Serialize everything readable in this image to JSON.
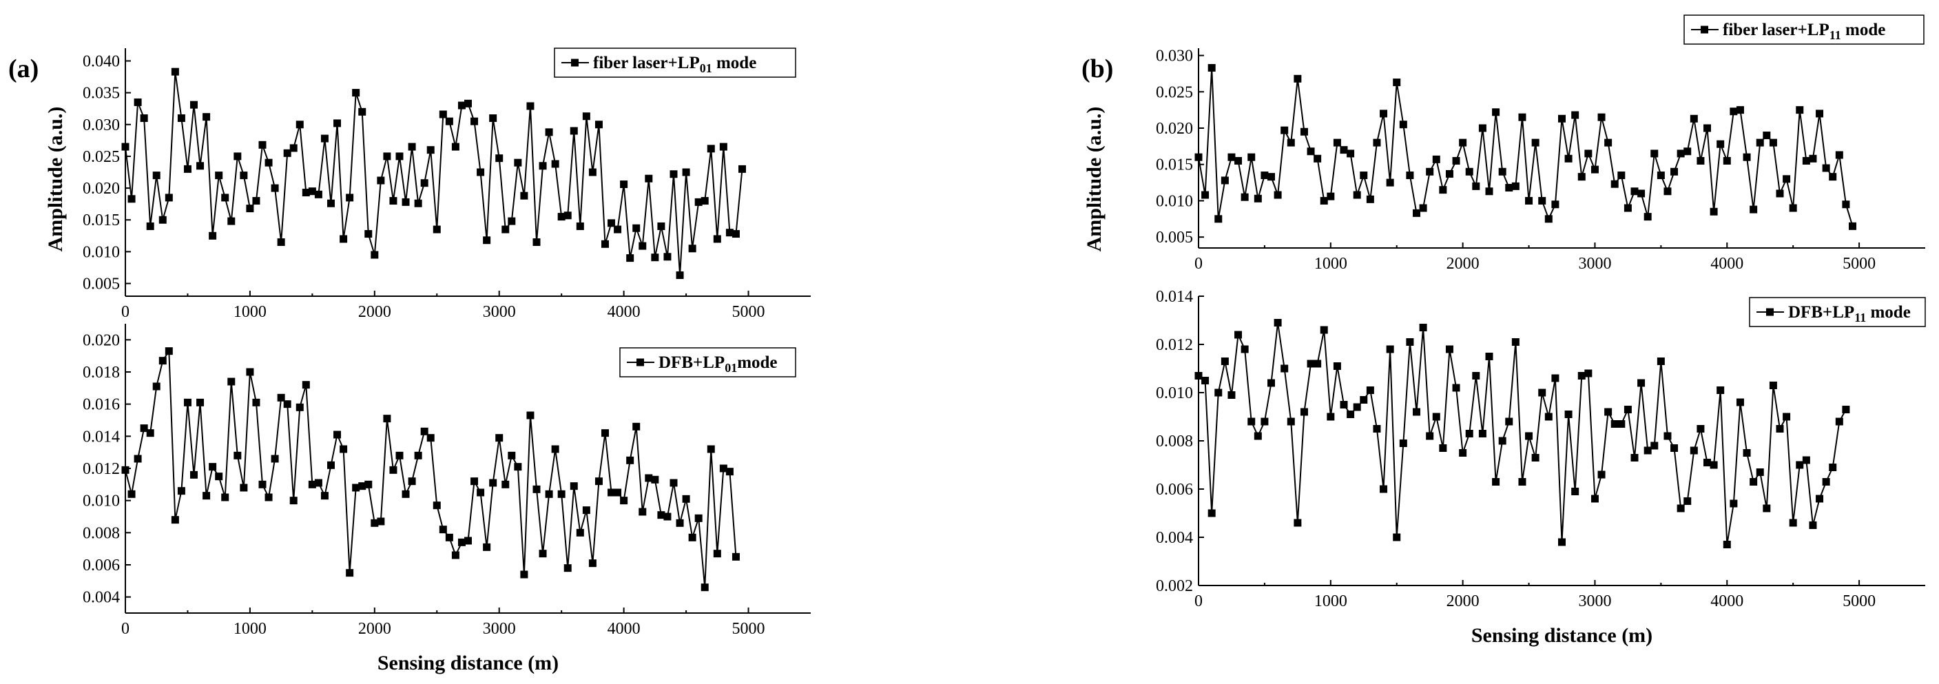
{
  "chart_data": [
    {
      "type": "line",
      "panel_label": "(a)",
      "title": "",
      "legend": {
        "name": "fiber laser+LP",
        "sub": "01",
        "suffix": " mode",
        "position": "top-right"
      },
      "xlabel": "",
      "ylabel": "",
      "xlim": [
        0,
        5500
      ],
      "ylim": [
        0.003,
        0.042
      ],
      "xticks": [
        0,
        1000,
        2000,
        3000,
        4000,
        5000
      ],
      "xticklabels": [
        "0",
        "1000",
        "2000",
        "3000",
        "4000",
        "5000"
      ],
      "yticks": [
        0.005,
        0.01,
        0.015,
        0.02,
        0.025,
        0.03,
        0.035,
        0.04
      ],
      "yticklabels": [
        "0.005",
        "0.010",
        "0.015",
        "0.020",
        "0.025",
        "0.030",
        "0.035",
        "0.040"
      ],
      "x_step": 50,
      "values": [
        0.0265,
        0.0183,
        0.0335,
        0.031,
        0.014,
        0.022,
        0.015,
        0.0185,
        0.0383,
        0.031,
        0.023,
        0.0331,
        0.0235,
        0.0312,
        0.0125,
        0.022,
        0.0185,
        0.0148,
        0.025,
        0.022,
        0.0168,
        0.018,
        0.0268,
        0.024,
        0.02,
        0.0115,
        0.0255,
        0.0263,
        0.03,
        0.0193,
        0.0195,
        0.019,
        0.0278,
        0.0176,
        0.0302,
        0.012,
        0.0185,
        0.035,
        0.032,
        0.0128,
        0.0095,
        0.0212,
        0.025,
        0.018,
        0.025,
        0.0178,
        0.0265,
        0.0176,
        0.0208,
        0.026,
        0.0135,
        0.0316,
        0.0305,
        0.0265,
        0.033,
        0.0333,
        0.0305,
        0.0225,
        0.0118,
        0.031,
        0.0247,
        0.0135,
        0.0148,
        0.024,
        0.0188,
        0.0329,
        0.0115,
        0.0235,
        0.0288,
        0.0238,
        0.0155,
        0.0157,
        0.029,
        0.014,
        0.0313,
        0.0225,
        0.03,
        0.0112,
        0.0145,
        0.0135,
        0.0206,
        0.009,
        0.0137,
        0.0109,
        0.0215,
        0.0091,
        0.014,
        0.0092,
        0.0222,
        0.0063,
        0.0225,
        0.0105,
        0.0178,
        0.018,
        0.0262,
        0.012,
        0.0265,
        0.013,
        0.0128,
        0.023
      ]
    },
    {
      "type": "line",
      "panel_label": "",
      "title": "",
      "legend": {
        "name": "DFB+LP",
        "sub": "01",
        "suffix": "mode",
        "position": "top-right"
      },
      "xlabel": "Sensing distance (m)",
      "ylabel": "Amplitude (a.u.)",
      "xlim": [
        0,
        5500
      ],
      "ylim": [
        0.003,
        0.021
      ],
      "xticks": [
        0,
        1000,
        2000,
        3000,
        4000,
        5000
      ],
      "xticklabels": [
        "0",
        "1000",
        "2000",
        "3000",
        "4000",
        "5000"
      ],
      "yticks": [
        0.004,
        0.006,
        0.008,
        0.01,
        0.012,
        0.014,
        0.016,
        0.018,
        0.02
      ],
      "yticklabels": [
        "0.004",
        "0.006",
        "0.008",
        "0.010",
        "0.012",
        "0.014",
        "0.016",
        "0.018",
        "0.020"
      ],
      "x_step": 50,
      "values": [
        0.0119,
        0.0104,
        0.0126,
        0.0145,
        0.0142,
        0.0171,
        0.0187,
        0.0193,
        0.0088,
        0.0106,
        0.0161,
        0.0116,
        0.0161,
        0.0103,
        0.0121,
        0.0115,
        0.0102,
        0.0174,
        0.0128,
        0.0108,
        0.018,
        0.0161,
        0.011,
        0.0102,
        0.0126,
        0.0164,
        0.016,
        0.01,
        0.0158,
        0.0172,
        0.011,
        0.0111,
        0.0103,
        0.0122,
        0.0141,
        0.0132,
        0.0055,
        0.0108,
        0.0109,
        0.011,
        0.0086,
        0.0087,
        0.0151,
        0.0119,
        0.0128,
        0.0104,
        0.0112,
        0.0128,
        0.0143,
        0.0139,
        0.0097,
        0.0082,
        0.0077,
        0.0066,
        0.0074,
        0.0075,
        0.0112,
        0.0105,
        0.0071,
        0.0111,
        0.0139,
        0.011,
        0.0128,
        0.0121,
        0.0054,
        0.0153,
        0.0107,
        0.0067,
        0.0104,
        0.0132,
        0.0104,
        0.0058,
        0.0109,
        0.008,
        0.0094,
        0.0061,
        0.0112,
        0.0142,
        0.0105,
        0.0105,
        0.01,
        0.0125,
        0.0146,
        0.0093,
        0.0114,
        0.0113,
        0.0091,
        0.009,
        0.0111,
        0.0086,
        0.0101,
        0.0077,
        0.0089,
        0.0046,
        0.0132,
        0.0067,
        0.012,
        0.0118,
        0.0065
      ]
    },
    {
      "type": "line",
      "panel_label": "(b)",
      "title": "",
      "legend": {
        "name": "fiber laser+LP",
        "sub": "11",
        "suffix": " mode",
        "position": "top-right"
      },
      "xlabel": "",
      "ylabel": "",
      "xlim": [
        0,
        5500
      ],
      "ylim": [
        0.0035,
        0.031
      ],
      "xticks": [
        0,
        1000,
        2000,
        3000,
        4000,
        5000
      ],
      "xticklabels": [
        "0",
        "1000",
        "2000",
        "3000",
        "4000",
        "5000"
      ],
      "yticks": [
        0.005,
        0.01,
        0.015,
        0.02,
        0.025,
        0.03
      ],
      "yticklabels": [
        "0.005",
        "0.010",
        "0.015",
        "0.020",
        "0.025",
        "0.030"
      ],
      "x_step": 50,
      "values": [
        0.016,
        0.0108,
        0.0283,
        0.0075,
        0.0128,
        0.016,
        0.0155,
        0.0105,
        0.016,
        0.0103,
        0.0135,
        0.0133,
        0.0108,
        0.0197,
        0.018,
        0.0268,
        0.0195,
        0.0168,
        0.0158,
        0.01,
        0.0106,
        0.018,
        0.017,
        0.0165,
        0.0108,
        0.0135,
        0.0102,
        0.018,
        0.022,
        0.0125,
        0.0263,
        0.0205,
        0.0135,
        0.0083,
        0.009,
        0.014,
        0.0157,
        0.0115,
        0.0137,
        0.0155,
        0.018,
        0.014,
        0.012,
        0.02,
        0.0113,
        0.0222,
        0.014,
        0.0118,
        0.012,
        0.0215,
        0.01,
        0.018,
        0.01,
        0.0075,
        0.0095,
        0.0213,
        0.0158,
        0.0218,
        0.0133,
        0.0165,
        0.0143,
        0.0215,
        0.018,
        0.0123,
        0.0135,
        0.009,
        0.0113,
        0.011,
        0.0078,
        0.0165,
        0.0135,
        0.0113,
        0.014,
        0.0165,
        0.0168,
        0.0213,
        0.0155,
        0.02,
        0.0085,
        0.0178,
        0.0155,
        0.0223,
        0.0225,
        0.016,
        0.0088,
        0.018,
        0.019,
        0.018,
        0.011,
        0.013,
        0.009,
        0.0225,
        0.0155,
        0.0158,
        0.022,
        0.0145,
        0.0133,
        0.0163,
        0.0095,
        0.0065
      ]
    },
    {
      "type": "line",
      "panel_label": "",
      "title": "",
      "legend": {
        "name": "DFB+LP",
        "sub": "11",
        "suffix": " mode",
        "position": "top-right"
      },
      "xlabel": "Sensing distance (m)",
      "ylabel": "Amplitude (a.u.)",
      "xlim": [
        0,
        5500
      ],
      "ylim": [
        0.002,
        0.014
      ],
      "xticks": [
        0,
        1000,
        2000,
        3000,
        4000,
        5000
      ],
      "xticklabels": [
        "0",
        "1000",
        "2000",
        "3000",
        "4000",
        "5000"
      ],
      "yticks": [
        0.002,
        0.004,
        0.006,
        0.008,
        0.01,
        0.012,
        0.014
      ],
      "yticklabels": [
        "0.002",
        "0.004",
        "0.006",
        "0.008",
        "0.010",
        "0.012",
        "0.014"
      ],
      "x_step": 50,
      "values": [
        0.0107,
        0.0105,
        0.005,
        0.01,
        0.0113,
        0.0099,
        0.0124,
        0.0118,
        0.0088,
        0.0082,
        0.0088,
        0.0104,
        0.0129,
        0.011,
        0.0088,
        0.0046,
        0.0092,
        0.0112,
        0.0112,
        0.0126,
        0.009,
        0.0111,
        0.0095,
        0.0091,
        0.0094,
        0.0097,
        0.0101,
        0.0085,
        0.006,
        0.0118,
        0.004,
        0.0079,
        0.0121,
        0.0092,
        0.0127,
        0.0082,
        0.009,
        0.0077,
        0.0118,
        0.0102,
        0.0075,
        0.0083,
        0.0107,
        0.0083,
        0.0115,
        0.0063,
        0.008,
        0.0088,
        0.0121,
        0.0063,
        0.0082,
        0.0073,
        0.01,
        0.009,
        0.0106,
        0.0038,
        0.0091,
        0.0059,
        0.0107,
        0.0108,
        0.0056,
        0.0066,
        0.0092,
        0.0087,
        0.0087,
        0.0093,
        0.0073,
        0.0104,
        0.0076,
        0.0078,
        0.0113,
        0.0082,
        0.0077,
        0.0052,
        0.0055,
        0.0076,
        0.0085,
        0.0071,
        0.007,
        0.0101,
        0.0037,
        0.0054,
        0.0096,
        0.0075,
        0.0063,
        0.0067,
        0.0052,
        0.0103,
        0.0085,
        0.009,
        0.0046,
        0.007,
        0.0072,
        0.0045,
        0.0056,
        0.0063,
        0.0069,
        0.0088,
        0.0093
      ]
    }
  ]
}
